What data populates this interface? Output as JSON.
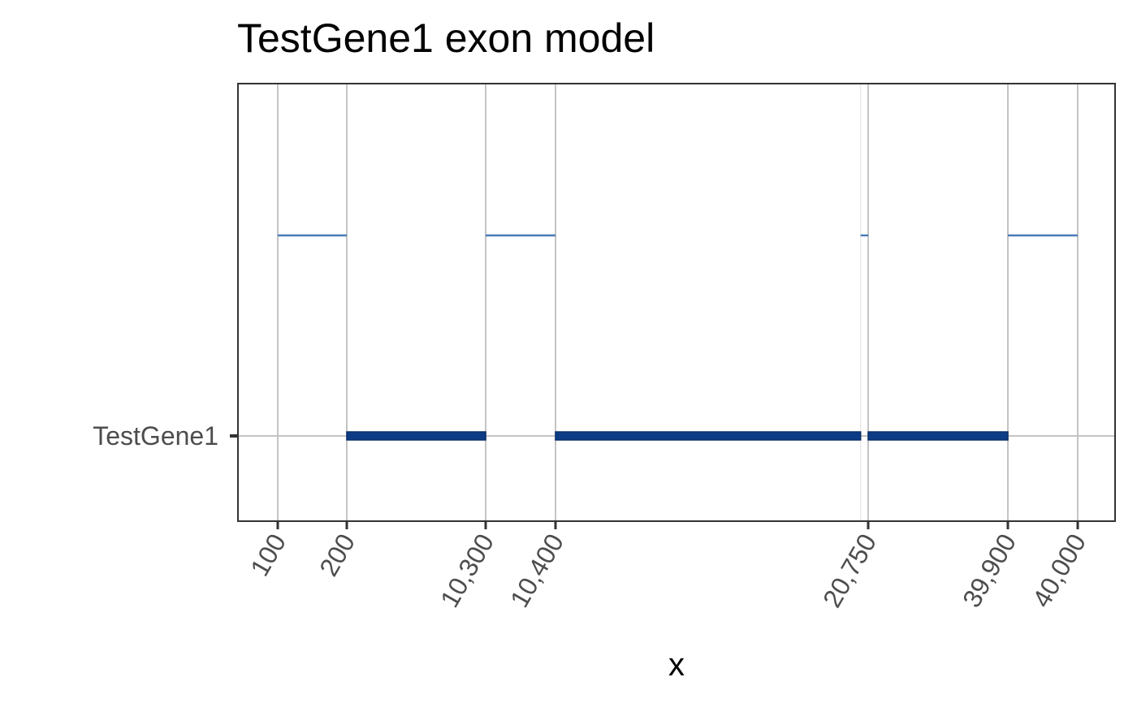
{
  "chart_data": {
    "type": "gene_model",
    "title": "TestGene1 exon model",
    "xlabel": "x",
    "ylabel": "",
    "y_categories": [
      "TestGene1"
    ],
    "x_breaks": [
      100,
      200,
      10300,
      10400,
      20750,
      39900,
      40000
    ],
    "x_break_labels": [
      "100",
      "200",
      "10,300",
      "10,400",
      "20,750",
      "39,900",
      "40,000"
    ],
    "exons": [
      {
        "gene": "TestGene1",
        "start": 200,
        "end": 10300
      },
      {
        "gene": "TestGene1",
        "start": 10400,
        "end": 20500
      },
      {
        "gene": "TestGene1",
        "start": 20750,
        "end": 39900
      }
    ],
    "introns": [
      {
        "start": 100,
        "end": 200
      },
      {
        "start": 10300,
        "end": 10400
      },
      {
        "start": 20500,
        "end": 20750
      },
      {
        "start": 39900,
        "end": 40000
      }
    ],
    "colors": {
      "exon": "#0c3c86",
      "intron": "#4a7ab8",
      "grid_major": "#c4c4c4",
      "grid_minor": "#e6e6e6",
      "panel_border": "#333333"
    }
  }
}
